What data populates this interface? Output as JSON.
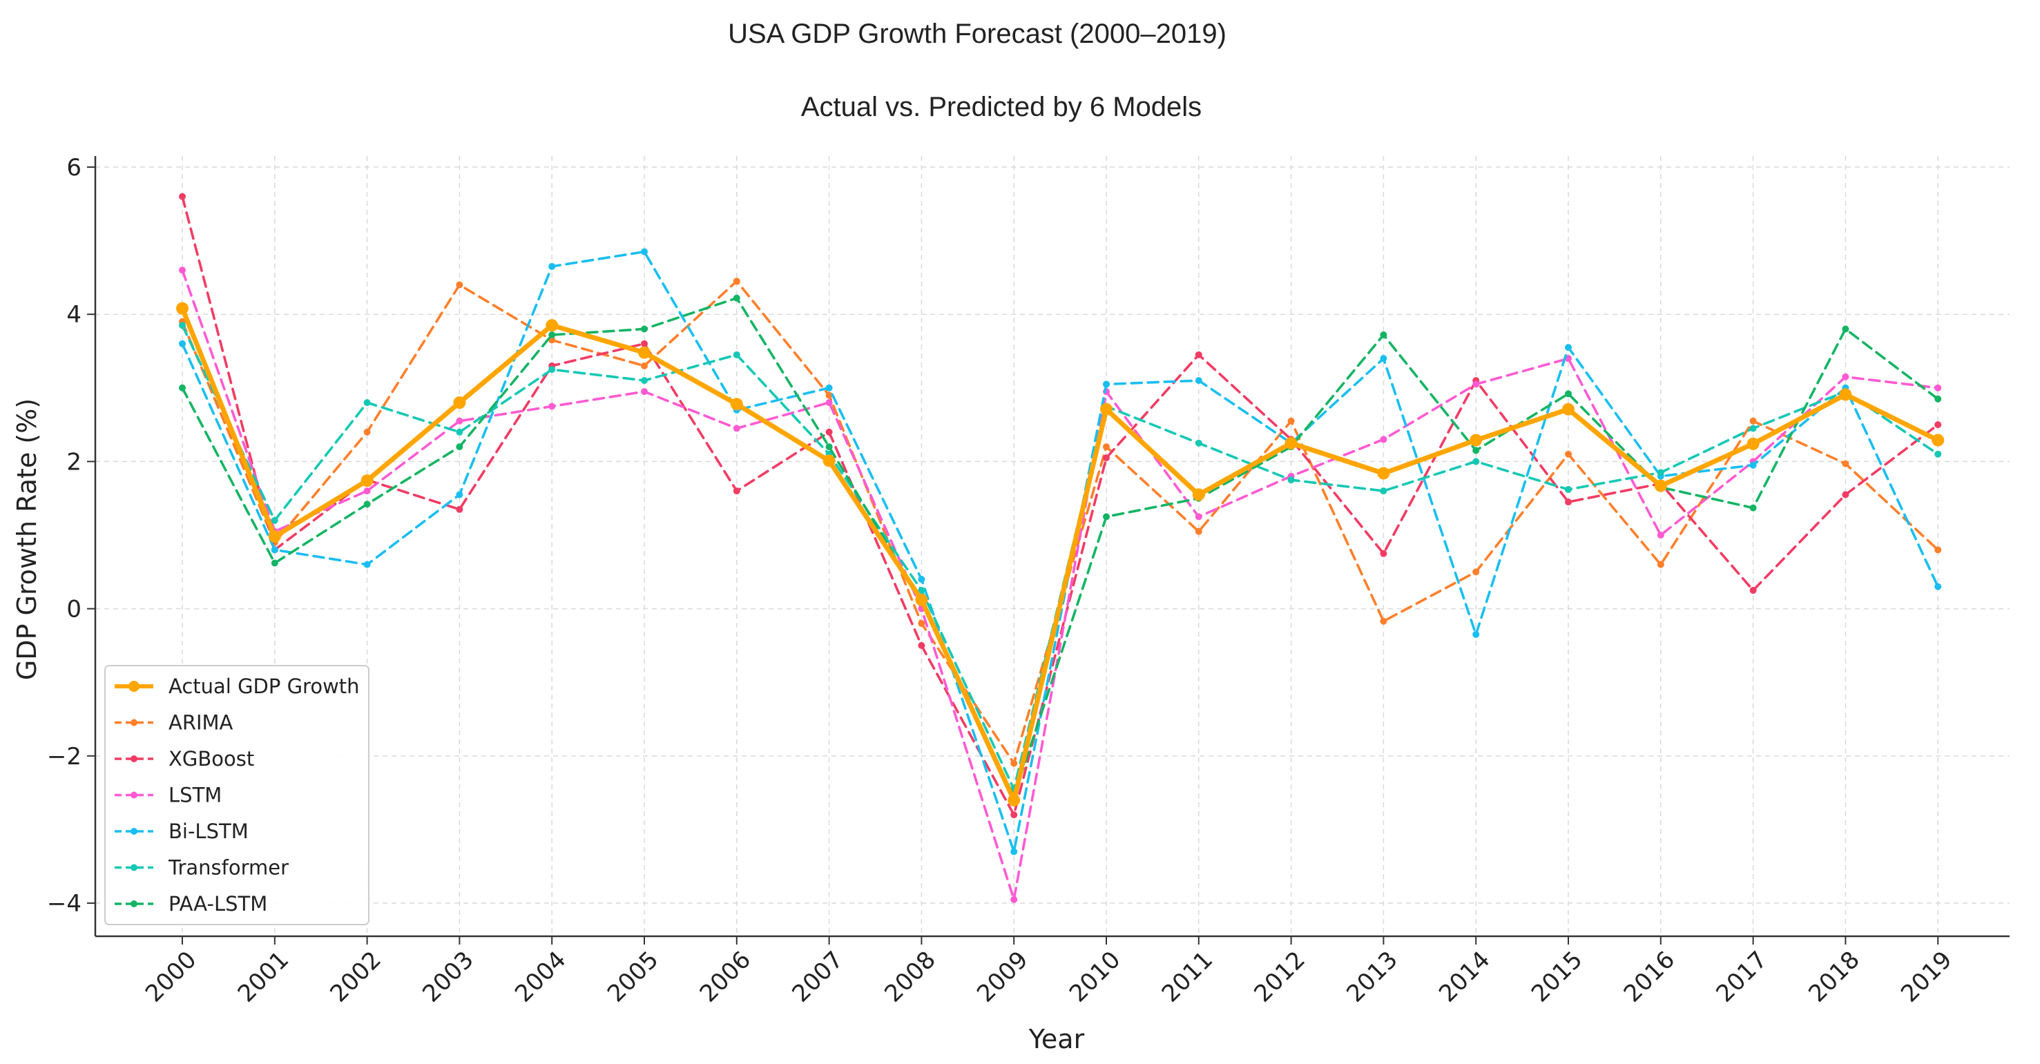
{
  "chart_data": {
    "type": "line",
    "title": "USA GDP Growth Forecast (2000–2019)",
    "subtitle": "Actual vs. Predicted by 6 Models",
    "xlabel": "Year",
    "ylabel": "GDP Growth Rate (%)",
    "ylim": [
      -4.45,
      6.15
    ],
    "yticks": [
      6,
      4,
      2,
      0,
      -2,
      -4
    ],
    "ytick_labels": [
      "6",
      "4",
      "2",
      "0",
      "−2",
      "−4"
    ],
    "grid": true,
    "legend_position": "lower-left",
    "categories": [
      "2000",
      "2001",
      "2002",
      "2003",
      "2004",
      "2005",
      "2006",
      "2007",
      "2008",
      "2009",
      "2010",
      "2011",
      "2012",
      "2013",
      "2014",
      "2015",
      "2016",
      "2017",
      "2018",
      "2019"
    ],
    "series": [
      {
        "name": "Actual GDP Growth",
        "color": "#ffa500",
        "style": "solid",
        "values": [
          4.08,
          0.98,
          1.74,
          2.8,
          3.85,
          3.48,
          2.78,
          2.01,
          0.12,
          -2.6,
          2.71,
          1.55,
          2.25,
          1.84,
          2.29,
          2.71,
          1.67,
          2.24,
          2.91,
          2.29
        ]
      },
      {
        "name": "ARIMA",
        "color": "#ff7f2a",
        "style": "dashed",
        "values": [
          3.9,
          0.9,
          2.4,
          4.4,
          3.65,
          3.3,
          4.45,
          2.9,
          -0.2,
          -2.1,
          2.2,
          1.05,
          2.55,
          -0.17,
          0.5,
          2.1,
          0.6,
          2.55,
          1.97,
          0.8
        ]
      },
      {
        "name": "XGBoost",
        "color": "#f03c64",
        "style": "dashed",
        "values": [
          5.6,
          0.8,
          1.75,
          1.35,
          3.3,
          3.6,
          1.6,
          2.4,
          -0.5,
          -2.8,
          2.05,
          3.45,
          2.3,
          0.75,
          3.1,
          1.45,
          1.7,
          0.25,
          1.55,
          2.5
        ]
      },
      {
        "name": "LSTM",
        "color": "#ff5ad2",
        "style": "dashed",
        "values": [
          4.6,
          1.05,
          1.6,
          2.55,
          2.75,
          2.95,
          2.45,
          2.8,
          0.0,
          -3.95,
          2.95,
          1.25,
          1.8,
          2.3,
          3.05,
          3.4,
          1.0,
          2.0,
          3.15,
          3.0
        ]
      },
      {
        "name": "Bi-LSTM",
        "color": "#19bef0",
        "style": "dashed",
        "values": [
          3.6,
          0.8,
          0.6,
          1.55,
          4.65,
          4.85,
          2.7,
          3.0,
          0.4,
          -3.3,
          3.05,
          3.1,
          2.25,
          3.4,
          -0.35,
          3.55,
          1.8,
          1.95,
          3.0,
          0.3
        ]
      },
      {
        "name": "Transformer",
        "color": "#14c8b4",
        "style": "dashed",
        "values": [
          3.85,
          1.2,
          2.8,
          2.4,
          3.25,
          3.1,
          3.45,
          2.1,
          0.25,
          -2.45,
          2.75,
          2.25,
          1.75,
          1.6,
          2.0,
          1.62,
          1.85,
          2.45,
          2.95,
          2.1
        ]
      },
      {
        "name": "PAA-LSTM",
        "color": "#14b464",
        "style": "dashed",
        "values": [
          3.0,
          0.62,
          1.42,
          2.2,
          3.72,
          3.8,
          4.22,
          2.2,
          0.1,
          -2.55,
          1.25,
          1.5,
          2.2,
          3.72,
          2.15,
          2.92,
          1.65,
          1.37,
          3.8,
          2.85
        ]
      }
    ]
  }
}
